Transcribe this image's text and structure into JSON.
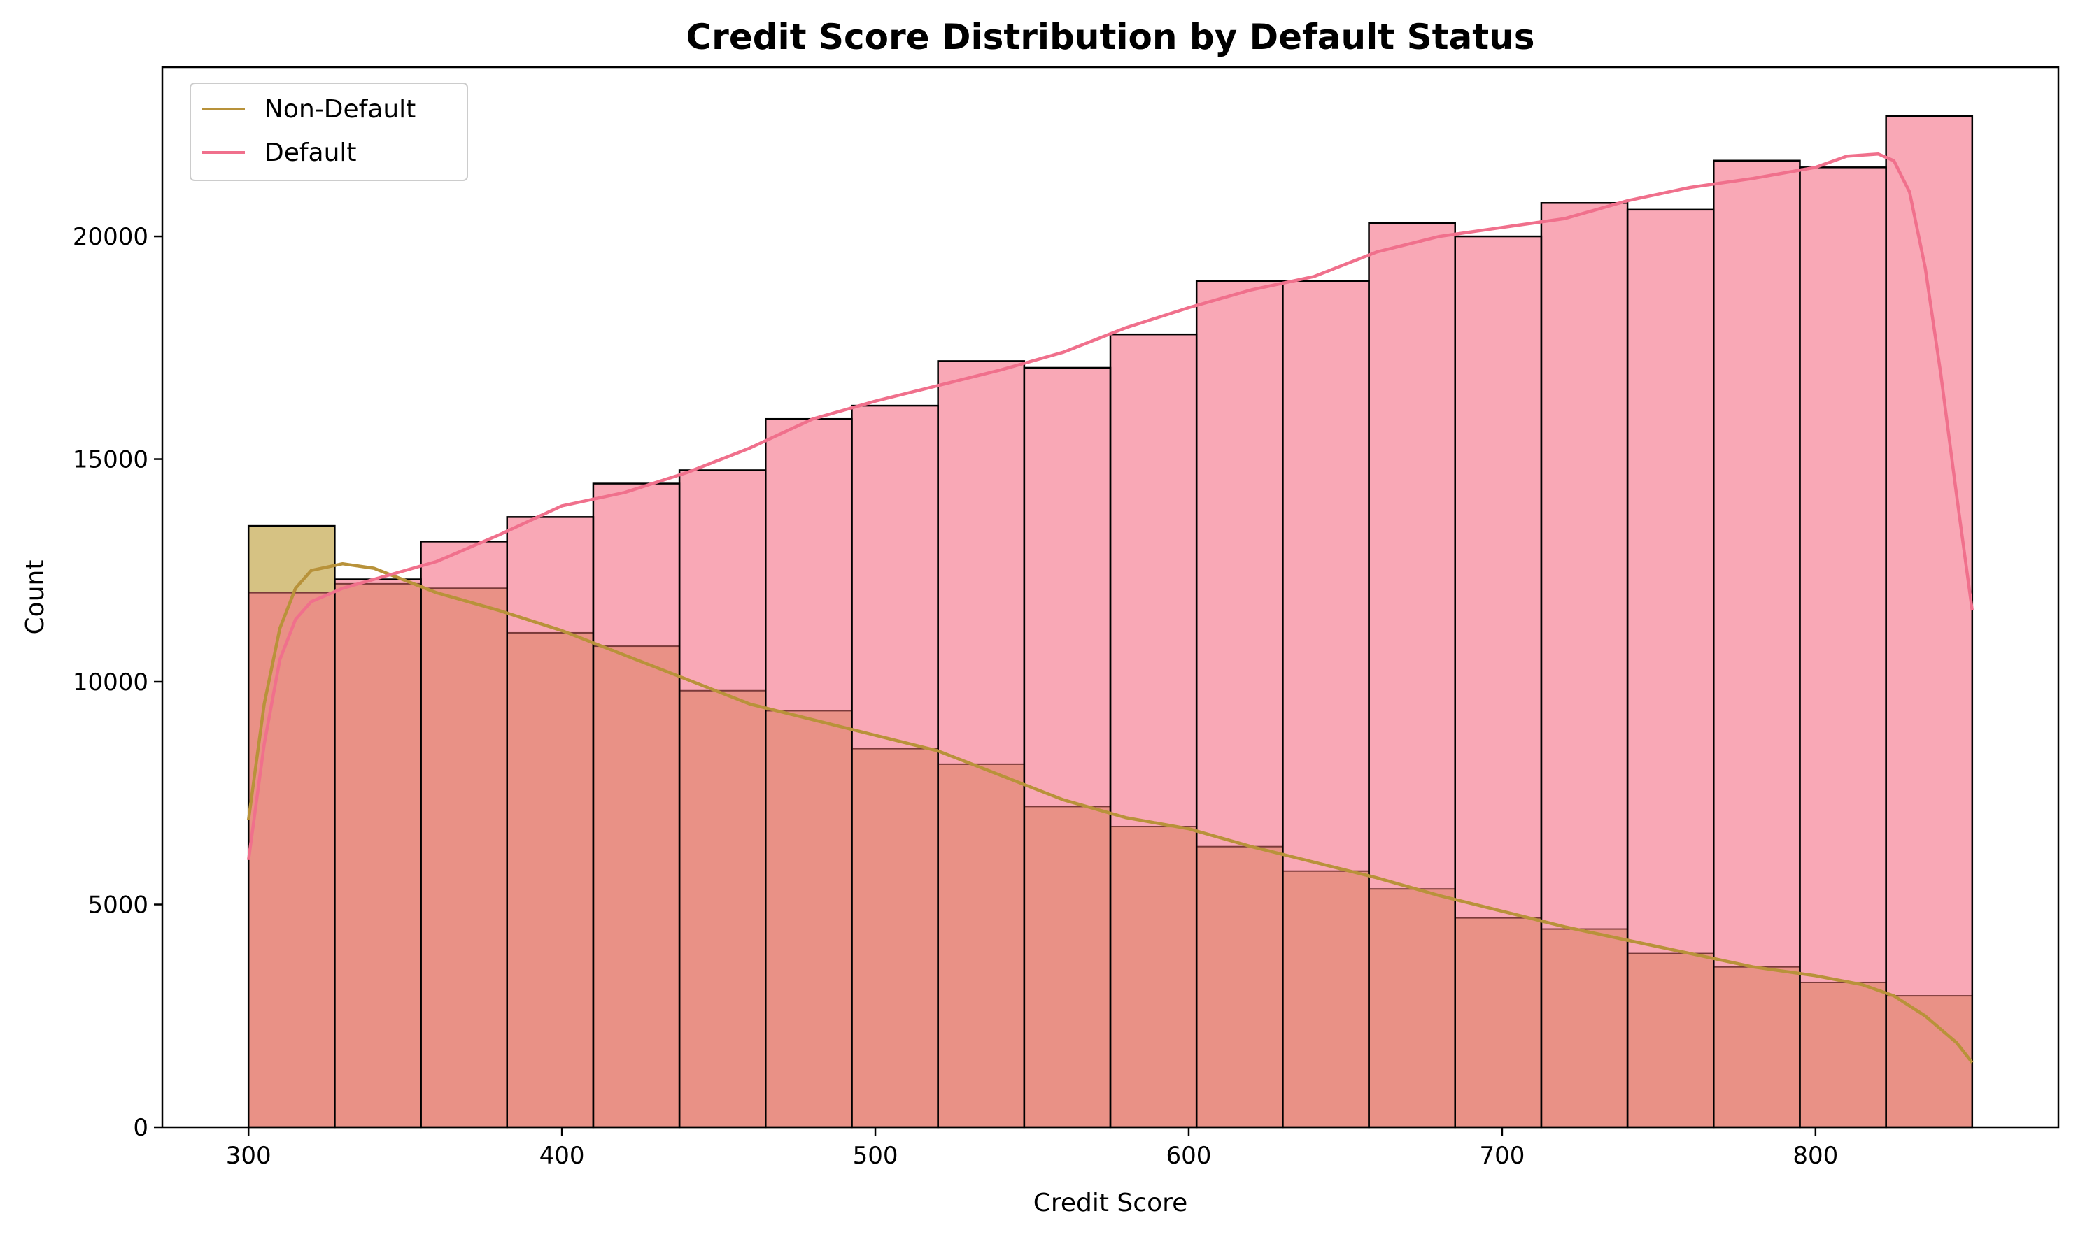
{
  "chart_data": {
    "type": "bar",
    "title": "Credit Score Distribution by Default Status",
    "xlabel": "Credit Score",
    "ylabel": "Count",
    "xlim": [
      272.5,
      877.5
    ],
    "ylim": [
      0,
      23800
    ],
    "xticks": [
      300,
      400,
      500,
      600,
      700,
      800
    ],
    "yticks": [
      0,
      5000,
      10000,
      15000,
      20000
    ],
    "bin_edges": [
      300,
      327.5,
      355,
      382.5,
      410,
      437.5,
      465,
      492.5,
      520,
      547.5,
      575,
      602.5,
      630,
      657.5,
      685,
      712.5,
      740,
      767.5,
      795,
      822.5,
      850
    ],
    "legend_position": "upper-left",
    "series": [
      {
        "name": "Non-Default",
        "color": "#b8923a",
        "fill": "#d6c283",
        "values": [
          13500,
          12200,
          12100,
          11100,
          10800,
          9800,
          9350,
          8500,
          8150,
          7200,
          6750,
          6300,
          5750,
          5350,
          4700,
          4450,
          3900,
          3600,
          3250,
          2950
        ],
        "kde": {
          "x": [
            300,
            305,
            310,
            315,
            320,
            330,
            340,
            360,
            380,
            400,
            420,
            440,
            460,
            480,
            500,
            520,
            540,
            560,
            580,
            600,
            620,
            640,
            660,
            680,
            700,
            720,
            740,
            760,
            780,
            800,
            815,
            825,
            835,
            845,
            850
          ],
          "y": [
            6900,
            9500,
            11200,
            12100,
            12500,
            12650,
            12550,
            12000,
            11600,
            11150,
            10600,
            10050,
            9500,
            9150,
            8800,
            8450,
            7900,
            7350,
            6950,
            6700,
            6300,
            5950,
            5600,
            5200,
            4850,
            4500,
            4200,
            3900,
            3600,
            3400,
            3200,
            2950,
            2500,
            1900,
            1450
          ]
        }
      },
      {
        "name": "Default",
        "color": "#f0708c",
        "fill": "#f9a8b6",
        "values": [
          12000,
          12300,
          13150,
          13700,
          14450,
          14750,
          15900,
          16200,
          17200,
          17050,
          17800,
          19000,
          19000,
          20300,
          20000,
          20750,
          20600,
          21700,
          21550,
          22700
        ],
        "kde": {
          "x": [
            300,
            305,
            310,
            315,
            320,
            330,
            340,
            360,
            380,
            400,
            420,
            440,
            460,
            480,
            500,
            520,
            540,
            560,
            580,
            600,
            620,
            640,
            660,
            680,
            700,
            720,
            740,
            760,
            780,
            800,
            810,
            820,
            825,
            830,
            835,
            840,
            845,
            850
          ],
          "y": [
            6000,
            8600,
            10500,
            11400,
            11800,
            12100,
            12300,
            12700,
            13300,
            13950,
            14250,
            14700,
            15250,
            15900,
            16300,
            16650,
            17000,
            17400,
            17950,
            18400,
            18800,
            19100,
            19650,
            20000,
            20200,
            20400,
            20800,
            21100,
            21300,
            21550,
            21800,
            21850,
            21700,
            21000,
            19300,
            16900,
            14200,
            11600
          ]
        }
      }
    ],
    "overlap_fill": "#e99186",
    "edge_color": "#000000"
  }
}
